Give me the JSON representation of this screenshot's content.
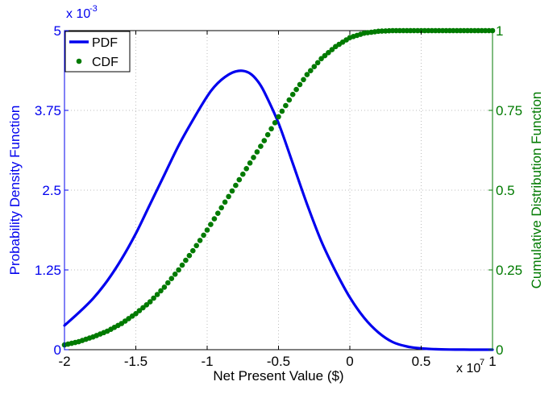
{
  "colors": {
    "pdf": "#0000ee",
    "cdf": "#007a00",
    "axis": "#000000",
    "grid": "#bdbdbd"
  },
  "chart_data": {
    "type": "line",
    "xlabel": "Net Present Value ($)",
    "ylabel_left": "Probability Density Function",
    "ylabel_right": "Cumulative Distribution Function",
    "x_exponent_base": "x 10",
    "x_exponent_power": "7",
    "y_exponent_base": "x 10",
    "y_exponent_power": "-3",
    "xlim": [
      -2,
      1
    ],
    "ylim_left": [
      0,
      5
    ],
    "ylim_right": [
      0,
      1
    ],
    "x_ticks": [
      -2,
      -1.5,
      -1,
      -0.5,
      0,
      0.5,
      1
    ],
    "x_tick_labels": [
      "-2",
      "-1.5",
      "-1",
      "-0.5",
      "0",
      "0.5",
      "1"
    ],
    "y_left_ticks": [
      0,
      1.25,
      2.5,
      3.75,
      5
    ],
    "y_left_tick_labels": [
      "0",
      "1.25",
      "2.5",
      "3.75",
      "5"
    ],
    "y_right_ticks": [
      0,
      0.25,
      0.5,
      0.75,
      1
    ],
    "y_right_tick_labels": [
      "0",
      "0.25",
      "0.5",
      "0.75",
      "1"
    ],
    "grid": true,
    "legend_position": "top-left",
    "series": [
      {
        "name": "PDF",
        "style": "line",
        "axis": "left",
        "x": [
          -2.0,
          -1.9,
          -1.8,
          -1.7,
          -1.6,
          -1.5,
          -1.4,
          -1.3,
          -1.2,
          -1.1,
          -1.0,
          -0.95,
          -0.9,
          -0.85,
          -0.8,
          -0.75,
          -0.7,
          -0.65,
          -0.6,
          -0.5,
          -0.4,
          -0.3,
          -0.2,
          -0.1,
          0.0,
          0.1,
          0.2,
          0.3,
          0.4,
          0.5,
          0.6,
          0.7,
          0.8,
          0.9,
          1.0
        ],
        "values": [
          0.38,
          0.58,
          0.8,
          1.08,
          1.42,
          1.82,
          2.28,
          2.74,
          3.2,
          3.6,
          3.97,
          4.12,
          4.23,
          4.31,
          4.36,
          4.37,
          4.33,
          4.22,
          4.04,
          3.55,
          2.92,
          2.28,
          1.7,
          1.23,
          0.82,
          0.5,
          0.27,
          0.12,
          0.05,
          0.02,
          0.008,
          0.003,
          0.001,
          0.0,
          0.0
        ]
      },
      {
        "name": "CDF",
        "style": "markers",
        "axis": "right",
        "x": [
          -2.0,
          -1.9,
          -1.8,
          -1.7,
          -1.6,
          -1.5,
          -1.4,
          -1.3,
          -1.2,
          -1.1,
          -1.0,
          -0.9,
          -0.8,
          -0.7,
          -0.6,
          -0.5,
          -0.4,
          -0.3,
          -0.2,
          -0.1,
          0.0,
          0.1,
          0.2,
          0.3,
          0.4,
          0.5,
          0.6,
          0.7,
          0.8,
          0.9,
          1.0
        ],
        "values": [
          0.015,
          0.025,
          0.04,
          0.058,
          0.082,
          0.113,
          0.15,
          0.196,
          0.25,
          0.31,
          0.375,
          0.445,
          0.515,
          0.585,
          0.655,
          0.73,
          0.8,
          0.862,
          0.912,
          0.95,
          0.978,
          0.992,
          0.998,
          1.0,
          1.0,
          1.0,
          1.0,
          1.0,
          1.0,
          1.0,
          1.0
        ]
      }
    ]
  }
}
